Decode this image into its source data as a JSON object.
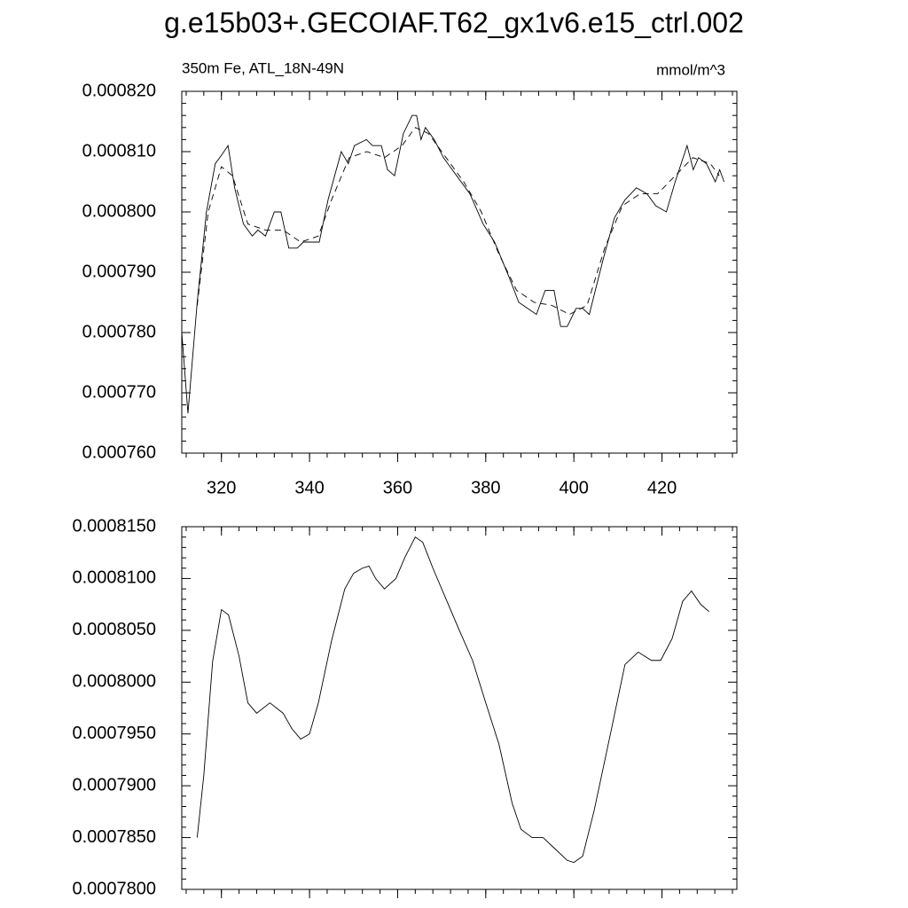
{
  "title": "g.e15b03+.GECOIAF.T62_gx1v6.e15_ctrl.002",
  "chart_data": [
    {
      "type": "line",
      "subtitle_left": "350m Fe, ATL_18N-49N",
      "subtitle_right": "mmol/m^3",
      "xlim": [
        311,
        437
      ],
      "xticks": [
        320,
        340,
        360,
        380,
        400,
        420
      ],
      "xtick_labels": true,
      "ylim": [
        0.00076,
        0.00082
      ],
      "yticks": [
        {
          "value": 0.00076,
          "label": "0.000760"
        },
        {
          "value": 0.00077,
          "label": "0.000770"
        },
        {
          "value": 0.00078,
          "label": "0.000780"
        },
        {
          "value": 0.00079,
          "label": "0.000790"
        },
        {
          "value": 0.0008,
          "label": "0.000800"
        },
        {
          "value": 0.00081,
          "label": "0.000810"
        },
        {
          "value": 0.00082,
          "label": "0.000820"
        }
      ],
      "series": [
        {
          "color": "#000000",
          "dash": false,
          "x": [
            311,
            312.4,
            314.5,
            316.6,
            318.6,
            320,
            321.5,
            323,
            325,
            327,
            328.3,
            330,
            332,
            333.5,
            335.3,
            337.2,
            338.6,
            340.6,
            342.2,
            344.2,
            347.2,
            348.8,
            350.2,
            352.9,
            354.3,
            356.3,
            357.7,
            359.3,
            361.3,
            363.3,
            364.3,
            365.3,
            366.3,
            368.3,
            370.4,
            373.4,
            376.4,
            379.4,
            382,
            385.4,
            387.5,
            389.5,
            391.5,
            393.5,
            395.5,
            397,
            398.5,
            400.5,
            402,
            403.5,
            406.6,
            409.2,
            411.6,
            414.2,
            416.6,
            418.6,
            421,
            423,
            425.7,
            427.1,
            428.3,
            430.1,
            432.1,
            433.1,
            434.1
          ],
          "values": [
            0.00078,
            0.0007666,
            0.000785,
            0.0008,
            0.000808,
            0.0008094,
            0.000811,
            0.000804,
            0.000798,
            0.000796,
            0.000797,
            0.000796,
            0.0008,
            0.0008,
            0.000794,
            0.000794,
            0.000795,
            0.000795,
            0.000795,
            0.000802,
            0.00081,
            0.000808,
            0.000811,
            0.000812,
            0.000811,
            0.000811,
            0.000807,
            0.000806,
            0.000813,
            0.000816,
            0.000816,
            0.000812,
            0.000814,
            0.000812,
            0.000809,
            0.000806,
            0.000803,
            0.000798,
            0.000795,
            0.000789,
            0.000785,
            0.000784,
            0.000783,
            0.000787,
            0.000787,
            0.000781,
            0.000781,
            0.000784,
            0.000784,
            0.000783,
            0.000792,
            0.000799,
            0.000802,
            0.000804,
            0.000803,
            0.000801,
            0.0008,
            0.000805,
            0.000811,
            0.000807,
            0.000809,
            0.000808,
            0.000805,
            0.000807,
            0.000805
          ]
        },
        {
          "color": "#000000",
          "dash": true,
          "x": [
            314.5,
            317,
            320,
            322.5,
            326,
            330,
            334,
            338,
            342,
            345,
            349,
            353,
            357,
            361,
            364,
            367,
            371,
            375,
            379,
            383,
            387,
            391,
            395,
            399,
            403,
            407,
            411,
            415,
            419,
            423,
            427,
            431,
            433
          ],
          "values": [
            0.0007845,
            0.0008,
            0.0008075,
            0.000806,
            0.000798,
            0.000797,
            0.000797,
            0.000795,
            0.000796,
            0.000802,
            0.000809,
            0.00081,
            0.000809,
            0.000811,
            0.000814,
            0.000813,
            0.000809,
            0.000805,
            0.0008,
            0.000793,
            0.000787,
            0.000785,
            0.0007845,
            0.000783,
            0.0007845,
            0.000794,
            0.000801,
            0.000803,
            0.000803,
            0.000806,
            0.000809,
            0.000808,
            0.000806
          ]
        }
      ]
    },
    {
      "type": "line",
      "xlim": [
        311,
        437
      ],
      "xticks": [
        320,
        340,
        360,
        380,
        400,
        420
      ],
      "xtick_labels": false,
      "ylim": [
        0.00078,
        0.000815
      ],
      "yticks": [
        {
          "value": 0.00078,
          "label": "0.0007800"
        },
        {
          "value": 0.000785,
          "label": "0.0007850"
        },
        {
          "value": 0.00079,
          "label": "0.0007900"
        },
        {
          "value": 0.000795,
          "label": "0.0007950"
        },
        {
          "value": 0.0008,
          "label": "0.0008000"
        },
        {
          "value": 0.000805,
          "label": "0.0008050"
        },
        {
          "value": 0.00081,
          "label": "0.0008100"
        },
        {
          "value": 0.000815,
          "label": "0.0008150"
        }
      ],
      "series": [
        {
          "color": "#000000",
          "dash": false,
          "x": [
            314.5,
            316,
            318,
            320,
            321.6,
            324,
            326,
            328,
            331,
            334,
            336,
            338,
            340,
            342,
            345,
            348,
            350,
            352,
            353.5,
            355,
            357,
            359.6,
            361.6,
            364,
            365.7,
            368,
            371,
            374,
            377,
            380,
            383,
            386,
            388,
            390.5,
            393,
            395.5,
            398.5,
            400,
            402,
            404.6,
            408.6,
            411.6,
            414.6,
            417.6,
            419.7,
            422.3,
            424.7,
            426.7,
            428.8,
            430.7
          ],
          "values": [
            0.000785,
            0.000791,
            0.000802,
            0.000807,
            0.0008065,
            0.0008025,
            0.000798,
            0.000797,
            0.000798,
            0.000797,
            0.0007955,
            0.0007945,
            0.000795,
            0.000798,
            0.000804,
            0.000809,
            0.0008105,
            0.000811,
            0.0008112,
            0.00081,
            0.000809,
            0.00081,
            0.000812,
            0.000814,
            0.0008135,
            0.000811,
            0.000808,
            0.000805,
            0.0008021,
            0.000798,
            0.000794,
            0.0007883,
            0.0007858,
            0.000785,
            0.000785,
            0.000784,
            0.0007828,
            0.0007826,
            0.0007832,
            0.0007876,
            0.0007956,
            0.0008017,
            0.0008029,
            0.0008021,
            0.0008021,
            0.0008042,
            0.0008078,
            0.0008088,
            0.0008075,
            0.0008068
          ]
        }
      ]
    }
  ]
}
